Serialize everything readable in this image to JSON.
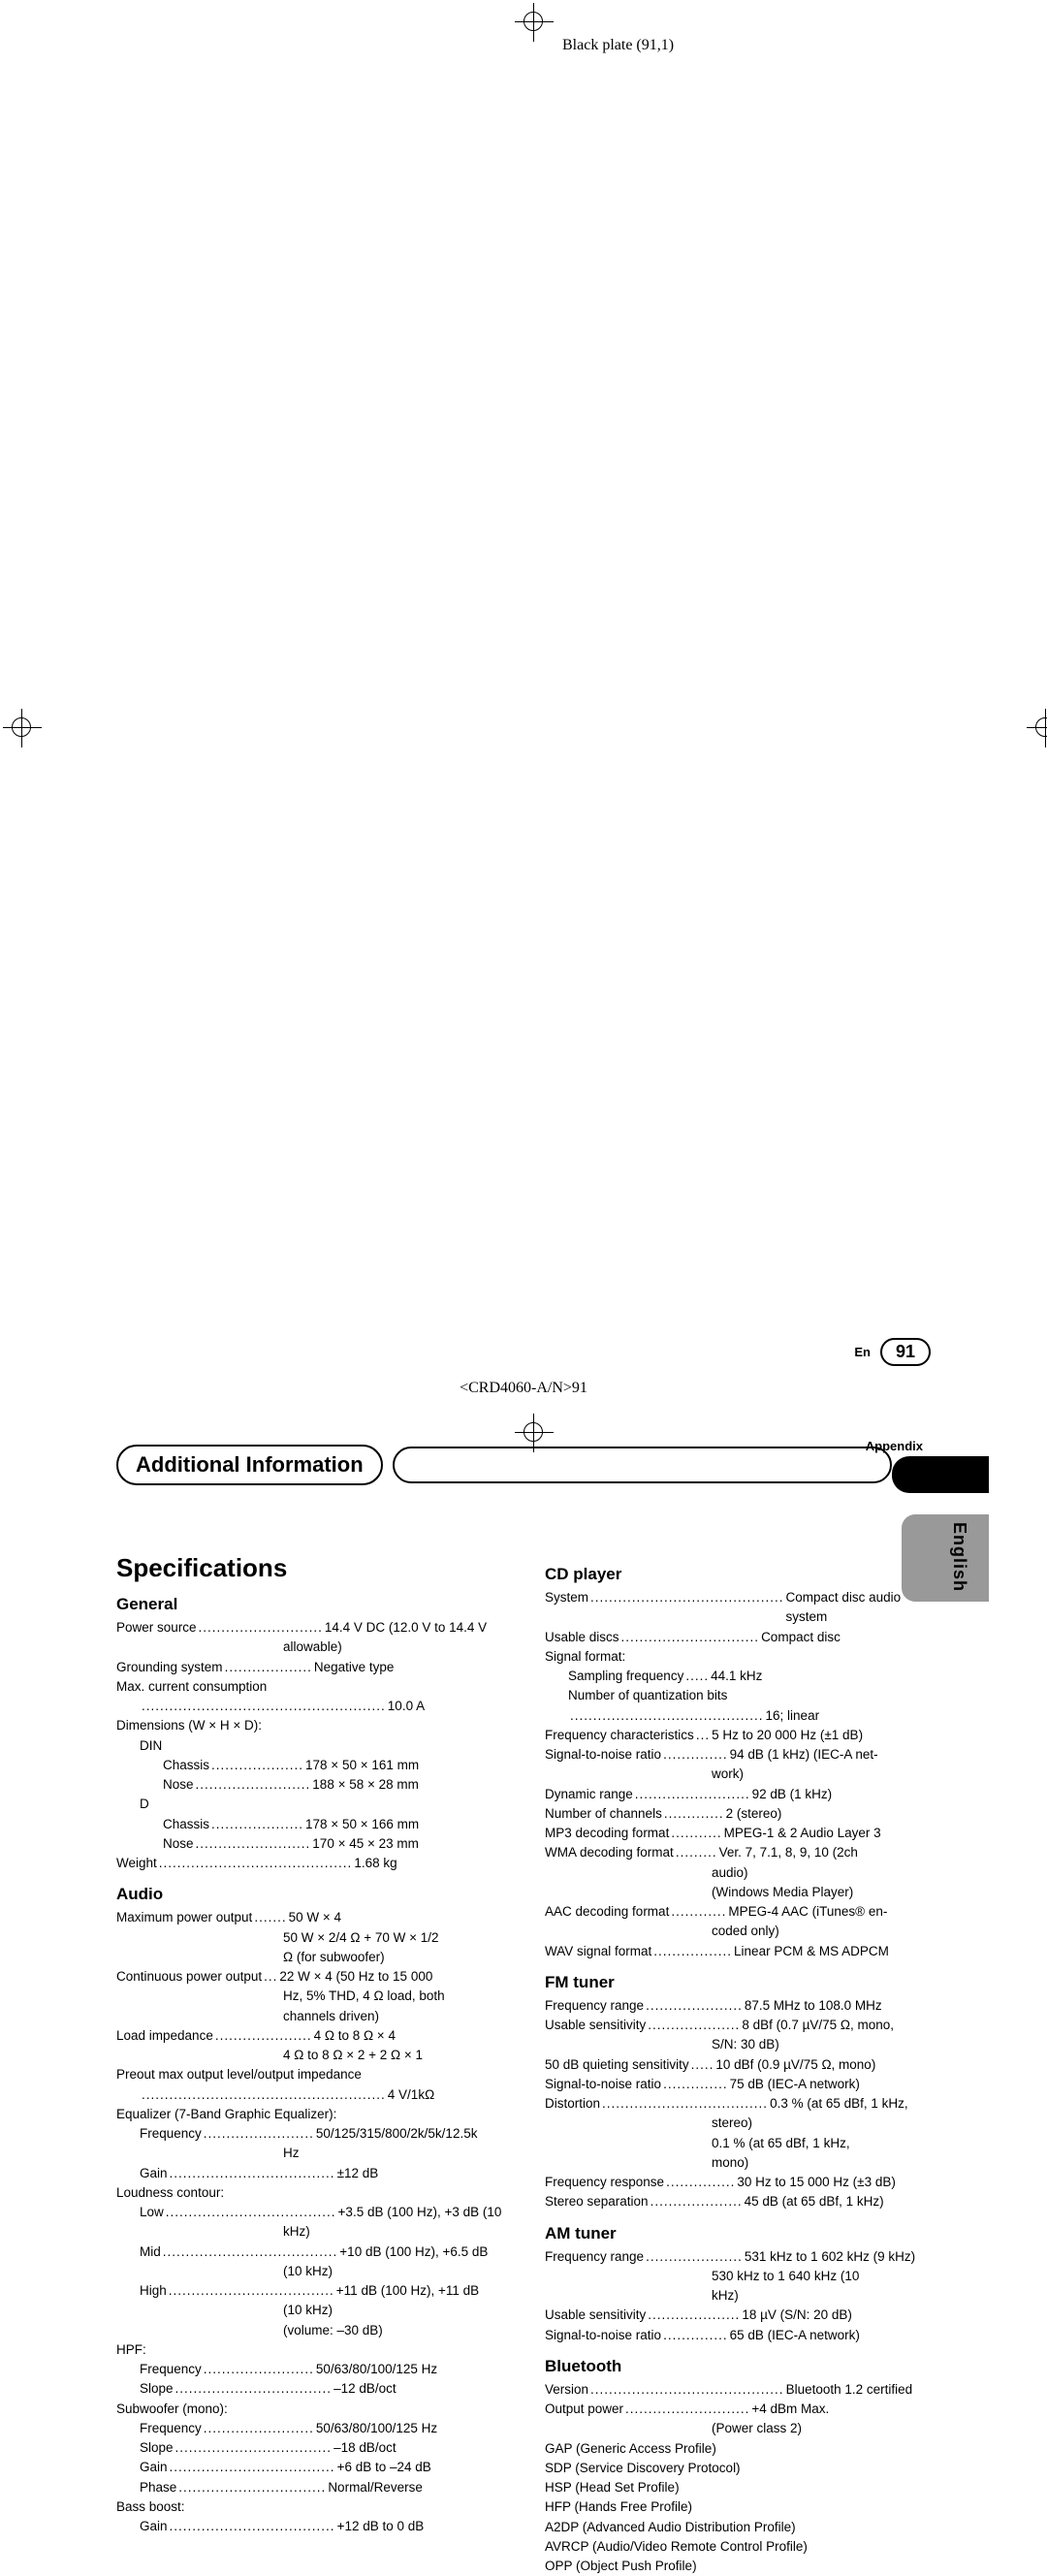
{
  "plate_label": "Black plate (91,1)",
  "appendix": "Appendix",
  "header_pill": "Additional Information",
  "side_label": "English",
  "title": "Specifications",
  "footer_lang": "En",
  "footer_page": "91",
  "doc_code": "<CRD4060-A/N>91",
  "sections": {
    "general": {
      "title": "General",
      "rows": [
        {
          "l": "Power source",
          "d": "...........................",
          "v": "14.4 V DC (12.0 V to 14.4 V"
        },
        {
          "cont": "allowable)"
        },
        {
          "l": "Grounding system",
          "d": "...................",
          "v": "Negative type"
        },
        {
          "l": "Max. current consumption",
          "d": "",
          "v": ""
        },
        {
          "indent": 1,
          "l": "",
          "d": ".....................................................",
          "v": "10.0 A"
        },
        {
          "l": "Dimensions (W × H × D):",
          "d": "",
          "v": ""
        },
        {
          "indent": 1,
          "l": "DIN",
          "d": "",
          "v": ""
        },
        {
          "indent": 2,
          "l": "Chassis",
          "d": "....................",
          "v": "178 × 50 × 161 mm"
        },
        {
          "indent": 2,
          "l": "Nose",
          "d": ".........................",
          "v": "188 × 58 × 28 mm"
        },
        {
          "indent": 1,
          "l": "D",
          "d": "",
          "v": ""
        },
        {
          "indent": 2,
          "l": "Chassis",
          "d": "....................",
          "v": "178 × 50 × 166 mm"
        },
        {
          "indent": 2,
          "l": "Nose",
          "d": ".........................",
          "v": "170 × 45 × 23 mm"
        },
        {
          "l": "Weight",
          "d": "..........................................",
          "v": "1.68 kg"
        }
      ]
    },
    "audio": {
      "title": "Audio",
      "rows": [
        {
          "l": "Maximum power output",
          "d": ".......",
          "v": "50 W × 4"
        },
        {
          "cont": "50 W × 2/4 Ω + 70 W × 1/2"
        },
        {
          "cont": "Ω (for subwoofer)"
        },
        {
          "l": "Continuous power output",
          "d": "...",
          "v": "22 W × 4 (50 Hz to 15 000"
        },
        {
          "cont": "Hz, 5% THD, 4 Ω load, both"
        },
        {
          "cont": "channels driven)"
        },
        {
          "l": "Load impedance",
          "d": ".....................",
          "v": "4 Ω to 8 Ω × 4"
        },
        {
          "cont": "4 Ω to 8 Ω × 2 + 2 Ω × 1"
        },
        {
          "l": "Preout max output level/output impedance",
          "d": "",
          "v": ""
        },
        {
          "indent": 1,
          "l": "",
          "d": ".....................................................",
          "v": "4 V/1kΩ"
        },
        {
          "l": "Equalizer (7-Band Graphic Equalizer):",
          "d": "",
          "v": ""
        },
        {
          "indent": 1,
          "l": "Frequency",
          "d": "........................",
          "v": "50/125/315/800/2k/5k/12.5k"
        },
        {
          "cont": "Hz"
        },
        {
          "indent": 1,
          "l": "Gain",
          "d": "....................................",
          "v": "±12 dB"
        },
        {
          "l": "Loudness contour:",
          "d": "",
          "v": ""
        },
        {
          "indent": 1,
          "l": "Low",
          "d": ".....................................",
          "v": "+3.5 dB (100 Hz), +3 dB (10"
        },
        {
          "cont": "kHz)"
        },
        {
          "indent": 1,
          "l": "Mid",
          "d": "......................................",
          "v": "+10 dB (100 Hz), +6.5 dB"
        },
        {
          "cont": "(10 kHz)"
        },
        {
          "indent": 1,
          "l": "High",
          "d": "....................................",
          "v": "+11 dB (100 Hz), +11 dB"
        },
        {
          "cont": "(10 kHz)"
        },
        {
          "cont": "(volume: –30 dB)"
        },
        {
          "l": "HPF:",
          "d": "",
          "v": ""
        },
        {
          "indent": 1,
          "l": "Frequency",
          "d": "........................",
          "v": "50/63/80/100/125 Hz"
        },
        {
          "indent": 1,
          "l": "Slope",
          "d": "..................................",
          "v": "–12 dB/oct"
        },
        {
          "l": "Subwoofer (mono):",
          "d": "",
          "v": ""
        },
        {
          "indent": 1,
          "l": "Frequency",
          "d": "........................",
          "v": "50/63/80/100/125 Hz"
        },
        {
          "indent": 1,
          "l": "Slope",
          "d": "..................................",
          "v": "–18 dB/oct"
        },
        {
          "indent": 1,
          "l": "Gain",
          "d": "....................................",
          "v": "+6 dB to –24 dB"
        },
        {
          "indent": 1,
          "l": "Phase",
          "d": "................................",
          "v": "Normal/Reverse"
        },
        {
          "l": "Bass boost:",
          "d": "",
          "v": ""
        },
        {
          "indent": 1,
          "l": "Gain",
          "d": "....................................",
          "v": "+12 dB to 0 dB"
        }
      ]
    },
    "cd": {
      "title": "CD player",
      "rows": [
        {
          "l": "System",
          "d": "..........................................",
          "v": "Compact disc audio system"
        },
        {
          "l": "Usable discs",
          "d": "..............................",
          "v": "Compact disc"
        },
        {
          "l": "Signal format:",
          "d": "",
          "v": ""
        },
        {
          "indent": 1,
          "l": "Sampling frequency",
          "d": ".....",
          "v": "44.1 kHz"
        },
        {
          "indent": 1,
          "l": "Number of quantization bits",
          "d": "",
          "v": ""
        },
        {
          "indent": 1,
          "l": "",
          "d": "..........................................",
          "v": "16; linear"
        },
        {
          "l": "Frequency characteristics",
          "d": "...",
          "v": "5 Hz to 20 000 Hz (±1 dB)"
        },
        {
          "l": "Signal-to-noise ratio",
          "d": "..............",
          "v": "94 dB (1 kHz) (IEC-A net-"
        },
        {
          "cont": "work)"
        },
        {
          "l": "Dynamic range",
          "d": ".........................",
          "v": "92 dB (1 kHz)"
        },
        {
          "l": "Number of channels",
          "d": ".............",
          "v": "2 (stereo)"
        },
        {
          "l": "MP3 decoding format",
          "d": "...........",
          "v": "MPEG-1 & 2 Audio Layer 3"
        },
        {
          "l": "WMA decoding format",
          "d": ".........",
          "v": "Ver. 7, 7.1, 8, 9, 10 (2ch"
        },
        {
          "cont": "audio)"
        },
        {
          "cont": "(Windows Media Player)"
        },
        {
          "l": "AAC decoding format",
          "d": "............",
          "v": "MPEG-4 AAC (iTunes® en-"
        },
        {
          "cont": "coded only)"
        },
        {
          "l": "WAV signal format",
          "d": ".................",
          "v": "Linear PCM & MS ADPCM"
        }
      ]
    },
    "fm": {
      "title": "FM tuner",
      "rows": [
        {
          "l": "Frequency range",
          "d": ".....................",
          "v": "87.5 MHz to 108.0 MHz"
        },
        {
          "l": "Usable sensitivity",
          "d": "....................",
          "v": "8 dBf (0.7 µV/75 Ω, mono,"
        },
        {
          "cont": "S/N: 30 dB)"
        },
        {
          "l": "50 dB quieting sensitivity",
          "d": ".....",
          "v": "10 dBf (0.9 µV/75 Ω, mono)"
        },
        {
          "l": "Signal-to-noise ratio",
          "d": "..............",
          "v": "75 dB (IEC-A network)"
        },
        {
          "l": "Distortion",
          "d": "....................................",
          "v": "0.3 % (at 65 dBf, 1 kHz,"
        },
        {
          "cont": "stereo)"
        },
        {
          "cont": "0.1 % (at 65 dBf, 1 kHz,"
        },
        {
          "cont": "mono)"
        },
        {
          "l": "Frequency response",
          "d": "...............",
          "v": "30 Hz to 15 000 Hz (±3 dB)"
        },
        {
          "l": "Stereo separation",
          "d": "....................",
          "v": "45 dB (at 65 dBf, 1 kHz)"
        }
      ]
    },
    "am": {
      "title": "AM tuner",
      "rows": [
        {
          "l": "Frequency range",
          "d": ".....................",
          "v": "531 kHz to 1 602 kHz (9 kHz)"
        },
        {
          "cont": "530 kHz to 1 640 kHz (10"
        },
        {
          "cont": "kHz)"
        },
        {
          "l": "Usable sensitivity",
          "d": "....................",
          "v": "18 µV (S/N: 20 dB)"
        },
        {
          "l": "Signal-to-noise ratio",
          "d": "..............",
          "v": "65 dB (IEC-A network)"
        }
      ]
    },
    "bt": {
      "title": "Bluetooth",
      "rows": [
        {
          "l": "Version",
          "d": "..........................................",
          "v": "Bluetooth 1.2 certified"
        },
        {
          "l": "Output power",
          "d": "...........................",
          "v": "+4 dBm Max."
        },
        {
          "cont": "(Power class 2)"
        },
        {
          "l": "GAP (Generic Access Profile)",
          "d": "",
          "v": ""
        },
        {
          "l": "SDP (Service Discovery Protocol)",
          "d": "",
          "v": ""
        },
        {
          "l": "HSP (Head Set Profile)",
          "d": "",
          "v": ""
        },
        {
          "l": "HFP (Hands Free Profile)",
          "d": "",
          "v": ""
        },
        {
          "l": "A2DP (Advanced Audio Distribution Profile)",
          "d": "",
          "v": ""
        },
        {
          "l": "AVRCP (Audio/Video Remote Control Profile)",
          "d": "",
          "v": ""
        },
        {
          "l": "OPP (Object Push Profile)",
          "d": "",
          "v": ""
        }
      ]
    }
  }
}
